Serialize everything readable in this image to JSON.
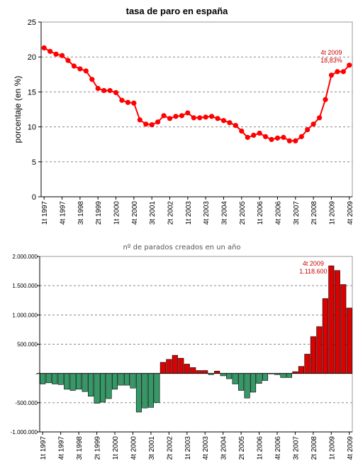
{
  "chart_data": [
    {
      "type": "line",
      "title": "tasa de paro en españa",
      "xlabel": "",
      "ylabel": "porcentaje (en %)",
      "ylim": [
        0,
        25
      ],
      "y_ticks": [
        0,
        5,
        10,
        15,
        20,
        25
      ],
      "grid": true,
      "color": "#ff0000",
      "categories": [
        "1t 1997",
        "2t 1997",
        "3t 1997",
        "4t 1997",
        "1t 1998",
        "2t 1998",
        "3t 1998",
        "4t 1998",
        "1t 1999",
        "2t 1999",
        "3t 1999",
        "4t 1999",
        "1t 2000",
        "2t 2000",
        "3t 2000",
        "4t 2000",
        "1t 2001",
        "2t 2001",
        "3t 2001",
        "4t 2001",
        "1t 2002",
        "2t 2002",
        "3t 2002",
        "4t 2002",
        "1t 2003",
        "2t 2003",
        "3t 2003",
        "4t 2003",
        "1t 2004",
        "2t 2004",
        "3t 2004",
        "4t 2004",
        "1t 2005",
        "2t 2005",
        "3t 2005",
        "4t 2005",
        "1t 2006",
        "2t 2006",
        "3t 2006",
        "4t 2006",
        "1t 2007",
        "2t 2007",
        "3t 2007",
        "4t 2007",
        "1t 2008",
        "2t 2008",
        "3t 2008",
        "4t 2008",
        "1t 2009",
        "2t 2009",
        "3t 2009",
        "4t 2009"
      ],
      "x_tick_labels": [
        "1t 1997",
        "4t 1997",
        "3t 1998",
        "2t 1999",
        "1t 2000",
        "4t 2000",
        "3t 2001",
        "2t 2002",
        "1t 2003",
        "4t 2003",
        "3t 2004",
        "2t 2005",
        "1t 2006",
        "4t 2006",
        "3t 2007",
        "2t 2008",
        "1t 2009",
        "4t 2009"
      ],
      "values": [
        21.3,
        20.8,
        20.4,
        20.2,
        19.5,
        18.7,
        18.3,
        18.0,
        16.8,
        15.5,
        15.2,
        15.2,
        14.9,
        13.8,
        13.5,
        13.4,
        11.0,
        10.4,
        10.3,
        10.7,
        11.6,
        11.2,
        11.5,
        11.6,
        12.0,
        11.3,
        11.3,
        11.4,
        11.5,
        11.2,
        10.9,
        10.6,
        10.2,
        9.4,
        8.5,
        8.8,
        9.1,
        8.6,
        8.2,
        8.4,
        8.5,
        8.0,
        8.0,
        8.6,
        9.6,
        10.4,
        11.3,
        13.9,
        17.4,
        17.9,
        17.9,
        18.83
      ],
      "annotation": {
        "lines": [
          "4t 2009",
          "18,83%"
        ]
      }
    },
    {
      "type": "bar",
      "title": "nº de parados creados en un año",
      "xlabel": "",
      "ylabel": "",
      "ylim": [
        -1000000,
        2000000
      ],
      "y_ticks": [
        -1000000,
        -500000,
        0,
        500000,
        1000000,
        1500000,
        2000000
      ],
      "y_tick_labels": [
        "-1.000.000",
        "-500.000",
        "-",
        "500.000",
        "1.000.000",
        "1.500.000",
        "2.000.000"
      ],
      "grid": true,
      "positive_color": "#dd0000",
      "negative_color": "#339966",
      "categories": [
        "1t 1997",
        "2t 1997",
        "3t 1997",
        "4t 1997",
        "1t 1998",
        "2t 1998",
        "3t 1998",
        "4t 1998",
        "1t 1999",
        "2t 1999",
        "3t 1999",
        "4t 1999",
        "1t 2000",
        "2t 2000",
        "3t 2000",
        "4t 2000",
        "1t 2001",
        "2t 2001",
        "3t 2001",
        "4t 2001",
        "1t 2002",
        "2t 2002",
        "3t 2002",
        "4t 2002",
        "1t 2003",
        "2t 2003",
        "3t 2003",
        "4t 2003",
        "1t 2004",
        "2t 2004",
        "3t 2004",
        "4t 2004",
        "1t 2005",
        "2t 2005",
        "3t 2005",
        "4t 2005",
        "1t 2006",
        "2t 2006",
        "3t 2006",
        "4t 2006",
        "1t 2007",
        "2t 2007",
        "3t 2007",
        "4t 2007",
        "1t 2008",
        "2t 2008",
        "3t 2008",
        "4t 2008",
        "1t 2009",
        "2t 2009",
        "3t 2009",
        "4t 2009"
      ],
      "x_tick_labels": [
        "1t 1997",
        "4t 1997",
        "3t 1998",
        "2t 1999",
        "1t 2000",
        "4t 2000",
        "3t 2001",
        "2t 2002",
        "1t 2003",
        "4t 2003",
        "3t 2004",
        "2t 2005",
        "1t 2006",
        "4t 2006",
        "3t 2007",
        "2t 2008",
        "1t 2009",
        "4t 2009"
      ],
      "values": [
        -180000,
        -160000,
        -180000,
        -190000,
        -270000,
        -290000,
        -270000,
        -310000,
        -390000,
        -510000,
        -490000,
        -430000,
        -270000,
        -200000,
        -200000,
        -250000,
        -660000,
        -590000,
        -580000,
        -500000,
        190000,
        240000,
        310000,
        260000,
        160000,
        100000,
        50000,
        50000,
        -20000,
        40000,
        -40000,
        -90000,
        -180000,
        -290000,
        -420000,
        -320000,
        -170000,
        -120000,
        0,
        -20000,
        -70000,
        -70000,
        30000,
        120000,
        330000,
        630000,
        800000,
        1280000,
        1840000,
        1760000,
        1520000,
        1118600
      ],
      "annotation": {
        "lines": [
          "4t 2009",
          "1.118.600"
        ]
      }
    }
  ]
}
